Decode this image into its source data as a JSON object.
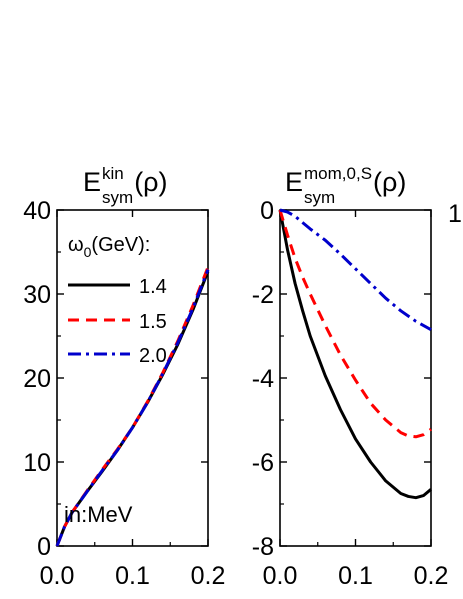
{
  "chart_data": [
    {
      "type": "line",
      "title_main": "E",
      "title_super": "kin",
      "title_sub": "sym",
      "title_arg": "(ρ)",
      "xlim": [
        0.0,
        0.2
      ],
      "ylim": [
        0,
        40
      ],
      "x_ticks": [
        "0.0",
        "0.1",
        "0.2"
      ],
      "y_ticks": [
        "0",
        "10",
        "20",
        "30",
        "40"
      ],
      "legend_title_main": "ω",
      "legend_title_sub": "0",
      "legend_title_rest": "(GeV):",
      "annotation": "in:MeV",
      "series": [
        {
          "name": "1.4",
          "color": "#000000",
          "dash": "solid",
          "x": [
            0.0,
            0.01,
            0.02,
            0.04,
            0.06,
            0.08,
            0.1,
            0.12,
            0.14,
            0.16,
            0.18,
            0.2
          ],
          "y": [
            0.0,
            2.3,
            4.0,
            6.5,
            8.9,
            11.4,
            14.1,
            17.1,
            20.4,
            24.0,
            28.1,
            32.7
          ]
        },
        {
          "name": "1.5",
          "color": "#ff0000",
          "dash": "dash",
          "x": [
            0.0,
            0.01,
            0.02,
            0.04,
            0.06,
            0.08,
            0.1,
            0.12,
            0.14,
            0.16,
            0.18,
            0.2
          ],
          "y": [
            0.0,
            2.3,
            4.0,
            6.6,
            9.1,
            11.5,
            14.1,
            17.2,
            20.6,
            24.4,
            28.6,
            33.2
          ]
        },
        {
          "name": "2.0",
          "color": "#0000cc",
          "dash": "dashdot",
          "x": [
            0.0,
            0.01,
            0.02,
            0.04,
            0.06,
            0.08,
            0.1,
            0.12,
            0.14,
            0.16,
            0.18,
            0.2
          ],
          "y": [
            0.0,
            2.3,
            4.0,
            6.5,
            9.0,
            11.4,
            14.1,
            17.1,
            20.5,
            24.2,
            28.3,
            32.9
          ]
        }
      ]
    },
    {
      "type": "line",
      "title_main": "E",
      "title_super": "mom,0,S",
      "title_sub": "sym",
      "title_arg": "(ρ)",
      "xlim": [
        0.0,
        0.2
      ],
      "ylim": [
        -8,
        0
      ],
      "x_ticks": [
        "0.0",
        "0.1",
        "0.2"
      ],
      "y_ticks": [
        "0",
        "-2",
        "-4",
        "-6",
        "-8"
      ],
      "series": [
        {
          "name": "1.4",
          "color": "#000000",
          "dash": "solid",
          "x": [
            0.0,
            0.01,
            0.02,
            0.03,
            0.04,
            0.06,
            0.08,
            0.1,
            0.12,
            0.14,
            0.16,
            0.17,
            0.18,
            0.19,
            0.2
          ],
          "y": [
            0.0,
            -0.95,
            -1.75,
            -2.4,
            -3.0,
            -3.95,
            -4.75,
            -5.45,
            -6.0,
            -6.45,
            -6.75,
            -6.82,
            -6.85,
            -6.8,
            -6.65
          ]
        },
        {
          "name": "1.5",
          "color": "#ff0000",
          "dash": "dash",
          "x": [
            0.0,
            0.01,
            0.02,
            0.03,
            0.04,
            0.06,
            0.08,
            0.1,
            0.12,
            0.14,
            0.16,
            0.17,
            0.18,
            0.19,
            0.2
          ],
          "y": [
            0.0,
            -0.6,
            -1.15,
            -1.6,
            -2.0,
            -2.75,
            -3.45,
            -4.05,
            -4.6,
            -5.0,
            -5.3,
            -5.38,
            -5.4,
            -5.35,
            -5.22
          ]
        },
        {
          "name": "2.0",
          "color": "#0000cc",
          "dash": "dashdot",
          "x": [
            0.0,
            0.01,
            0.02,
            0.03,
            0.04,
            0.06,
            0.08,
            0.1,
            0.12,
            0.14,
            0.16,
            0.18,
            0.2
          ],
          "y": [
            0.0,
            -0.05,
            -0.15,
            -0.3,
            -0.45,
            -0.72,
            -1.05,
            -1.4,
            -1.75,
            -2.1,
            -2.4,
            -2.65,
            -2.85
          ]
        }
      ]
    }
  ],
  "edge_label": "1"
}
